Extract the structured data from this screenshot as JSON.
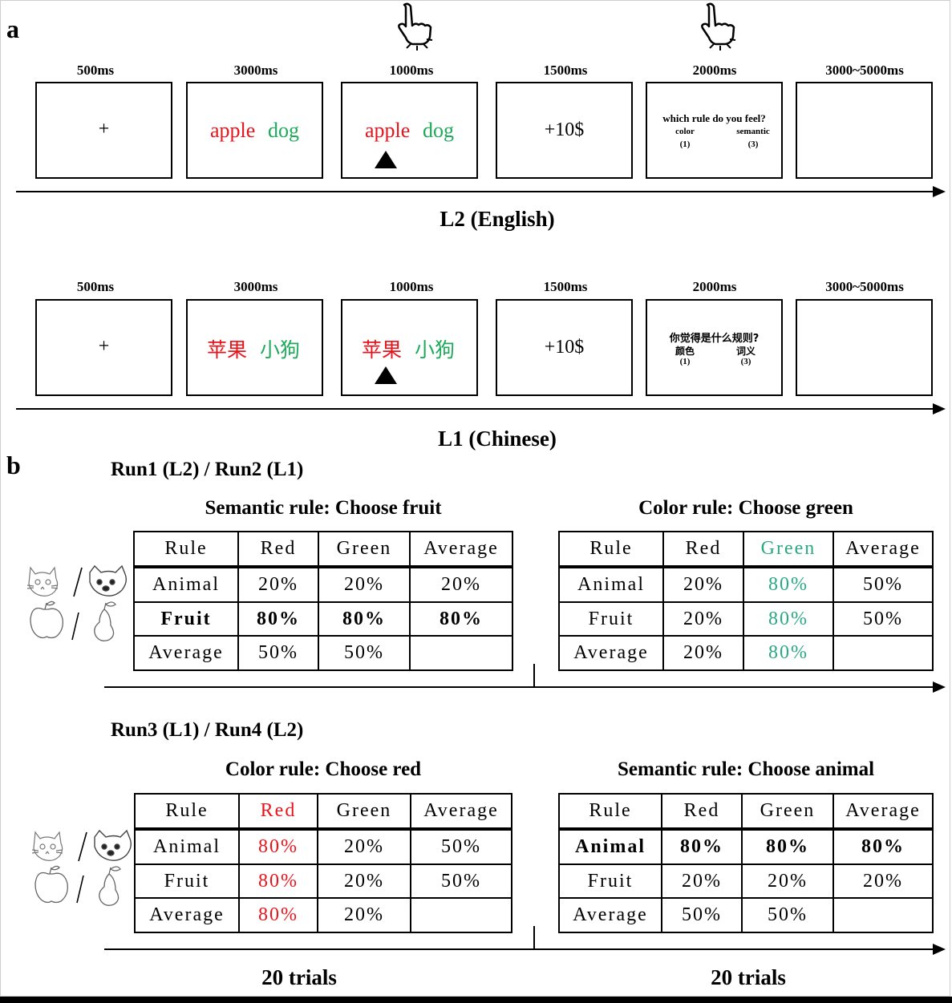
{
  "panel_a": {
    "label": "a",
    "l2": {
      "times": [
        "500ms",
        "3000ms",
        "1000ms",
        "1500ms",
        "2000ms",
        "3000~5000ms"
      ],
      "fixation": "+",
      "word1": "apple",
      "word2": "dog",
      "reward": "+10$",
      "question": "which rule do you feel?",
      "opt1": "color",
      "opt1_key": "(1)",
      "opt2": "semantic",
      "opt2_key": "(3)",
      "label": "L2 (English)"
    },
    "l1": {
      "times": [
        "500ms",
        "3000ms",
        "1000ms",
        "1500ms",
        "2000ms",
        "3000~5000ms"
      ],
      "fixation": "+",
      "word1": "苹果",
      "word2": "小狗",
      "reward": "+10$",
      "question": "你觉得是什么规则?",
      "opt1": "颜色",
      "opt1_key": "(1)",
      "opt2": "词义",
      "opt2_key": "(3)",
      "label": "L1 (Chinese)"
    },
    "colors": {
      "red": "#e8141c",
      "green": "#1daa5a"
    },
    "icons": [
      "pointing-hand-press-icon"
    ]
  },
  "panel_b": {
    "label": "b",
    "block1": {
      "title": "Run1 (L2) / Run2 (L1)",
      "left": {
        "title": "Semantic rule: Choose fruit",
        "header": [
          "Rule",
          "Red",
          "Green",
          "Average"
        ],
        "rows": [
          [
            "Animal",
            "20%",
            "20%",
            "20%"
          ],
          [
            "Fruit",
            "80%",
            "80%",
            "80%"
          ],
          [
            "Average",
            "50%",
            "50%",
            ""
          ]
        ]
      },
      "right": {
        "title": "Color rule: Choose green",
        "header": [
          "Rule",
          "Red",
          "Green",
          "Average"
        ],
        "rows": [
          [
            "Animal",
            "20%",
            "80%",
            "50%"
          ],
          [
            "Fruit",
            "20%",
            "80%",
            "50%"
          ],
          [
            "Average",
            "20%",
            "80%",
            ""
          ]
        ]
      }
    },
    "block2": {
      "title": "Run3 (L1) / Run4 (L2)",
      "left": {
        "title": "Color rule: Choose red",
        "header": [
          "Rule",
          "Red",
          "Green",
          "Average"
        ],
        "rows": [
          [
            "Animal",
            "80%",
            "20%",
            "50%"
          ],
          [
            "Fruit",
            "80%",
            "20%",
            "50%"
          ],
          [
            "Average",
            "80%",
            "20%",
            ""
          ]
        ]
      },
      "right": {
        "title": "Semantic rule: Choose animal",
        "header": [
          "Rule",
          "Red",
          "Green",
          "Average"
        ],
        "rows": [
          [
            "Animal",
            "80%",
            "80%",
            "80%"
          ],
          [
            "Fruit",
            "20%",
            "20%",
            "20%"
          ],
          [
            "Average",
            "50%",
            "50%",
            ""
          ]
        ]
      }
    },
    "trials_left": "20 trials",
    "trials_right": "20 trials",
    "icons": [
      "cat-sketch-icon",
      "dog-sketch-icon",
      "apple-sketch-icon",
      "pear-sketch-icon"
    ]
  }
}
